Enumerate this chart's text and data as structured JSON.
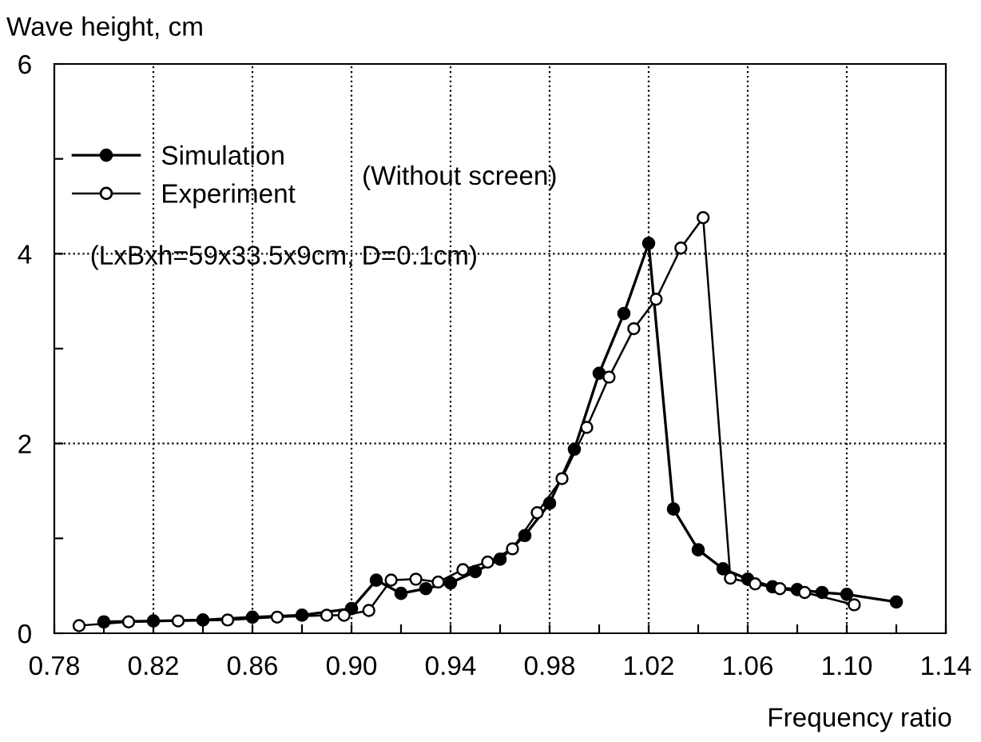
{
  "chart_data": {
    "type": "line",
    "xlabel": "Frequency ratio",
    "ylabel": "Wave height, cm",
    "xlim": [
      0.78,
      1.14
    ],
    "ylim": [
      0,
      6
    ],
    "xticks": [
      0.78,
      {
        "value": 0.8,
        "label": null
      },
      0.82,
      {
        "value": 0.84,
        "label": null
      },
      0.86,
      {
        "value": 0.88,
        "label": null
      },
      {
        "value": 0.9,
        "label": "0.90"
      },
      {
        "value": 0.92,
        "label": null
      },
      0.94,
      {
        "value": 0.96,
        "label": null
      },
      0.98,
      {
        "value": 1.0,
        "label": null
      },
      1.02,
      {
        "value": 1.04,
        "label": null
      },
      1.06,
      {
        "value": 1.08,
        "label": null
      },
      {
        "value": 1.1,
        "label": "1.10"
      },
      {
        "value": 1.12,
        "label": null
      },
      1.14
    ],
    "yticks": [
      0,
      {
        "value": 1,
        "label": null
      },
      2,
      {
        "value": 3,
        "label": null
      },
      4,
      {
        "value": 5,
        "label": null
      },
      6
    ],
    "grid": true,
    "legend": "top left",
    "line_style": "solid",
    "series": [
      {
        "name": "Simulation",
        "color": "#000000",
        "marker": "circle",
        "x": [
          0.8,
          0.82,
          0.84,
          0.86,
          0.88,
          0.9,
          0.91,
          0.92,
          0.93,
          0.94,
          0.95,
          0.96,
          0.97,
          0.98,
          0.99,
          1.0,
          1.01,
          1.02,
          1.03,
          1.04,
          1.05,
          1.06,
          1.07,
          1.08,
          1.09,
          1.1,
          1.12
        ],
        "values": [
          0.12,
          0.13,
          0.14,
          0.17,
          0.19,
          0.26,
          0.56,
          0.42,
          0.47,
          0.53,
          0.65,
          0.78,
          1.03,
          1.37,
          1.94,
          2.74,
          3.37,
          4.11,
          1.31,
          0.88,
          0.68,
          0.57,
          0.49,
          0.46,
          0.43,
          0.41,
          0.33
        ]
      },
      {
        "name": "Experiment",
        "color": "#000000",
        "marker": "circle",
        "colors": [
          "#ffffff",
          "#ffffff",
          "#ffffff",
          "#ffffff",
          "#ffffff",
          "#ffffff",
          "#ffffff",
          "#ffffff",
          "#ffffff",
          "#ffffff",
          "#ffffff",
          "#ffffff",
          "#ffffff",
          "#ffffff",
          "#ffffff",
          "#ffffff",
          "#ffffff",
          "#ffffff",
          "#ffffff",
          "#ffffff",
          "#ffffff",
          "#ffffff",
          "#ffffff",
          "#ffffff",
          "#ffffff",
          "#ffffff",
          "#ffffff"
        ],
        "x": [
          0.79,
          0.81,
          0.83,
          0.85,
          0.87,
          0.89,
          0.897,
          0.907,
          0.916,
          0.926,
          0.935,
          0.945,
          0.955,
          0.965,
          0.975,
          0.985,
          0.995,
          1.004,
          1.014,
          1.023,
          1.033,
          1.042,
          1.053,
          1.063,
          1.073,
          1.083,
          1.103
        ],
        "values": [
          0.08,
          0.12,
          0.13,
          0.14,
          0.17,
          0.19,
          0.19,
          0.24,
          0.56,
          0.57,
          0.54,
          0.67,
          0.75,
          0.89,
          1.27,
          1.63,
          2.17,
          2.7,
          3.21,
          3.52,
          4.06,
          4.38,
          0.58,
          0.52,
          0.47,
          0.43,
          0.3
        ]
      }
    ],
    "annotations": [
      "(Without screen)",
      "(LxBxh=59x33.5x9cm, D=0.1cm)"
    ]
  }
}
